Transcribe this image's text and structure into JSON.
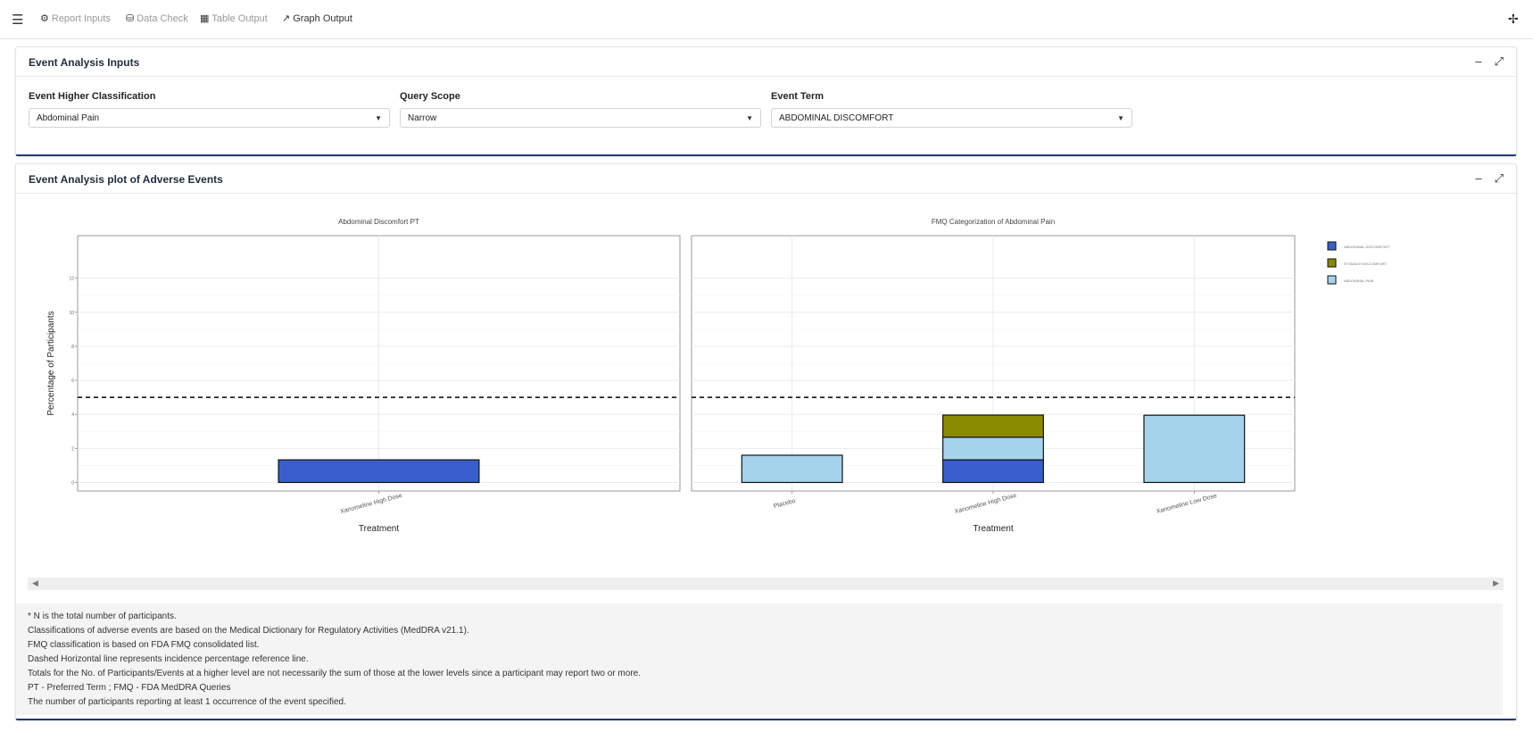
{
  "nav": {
    "items": [
      {
        "label": "Report Inputs",
        "icon": "gears-icon",
        "active": false
      },
      {
        "label": "Data Check",
        "icon": "database-icon",
        "active": false
      },
      {
        "label": "Table Output",
        "icon": "table-icon",
        "active": false
      },
      {
        "label": "Graph Output",
        "icon": "chart-line-icon",
        "active": true
      }
    ]
  },
  "inputs_card": {
    "title": "Event Analysis Inputs",
    "fields": [
      {
        "label": "Event Higher Classification",
        "value": "Abdominal Pain"
      },
      {
        "label": "Query Scope",
        "value": "Narrow"
      },
      {
        "label": "Event Term",
        "value": "ABDOMINAL DISCOMFORT"
      }
    ]
  },
  "plot_card": {
    "title": "Event Analysis plot of Adverse Events"
  },
  "chart_data": [
    {
      "type": "bar",
      "title": "Abdominal Discomfort PT",
      "xlabel": "Treatment",
      "ylabel": "Percentage of Participants",
      "categories": [
        "Xanomeline High Dose"
      ],
      "series": [
        {
          "name": "ABDOMINAL DISCOMFORT",
          "color": "#3a5fcd",
          "values": [
            1.33
          ]
        }
      ],
      "yticks": [
        0,
        2,
        4,
        6,
        8,
        10,
        12
      ],
      "ylim": [
        -0.5,
        14.5
      ],
      "reference_line": 5,
      "grid": true
    },
    {
      "type": "bar",
      "stacked": true,
      "title": "FMQ Categorization of Abdominal Pain",
      "xlabel": "Treatment",
      "categories": [
        "Placebo",
        "Xanomeline High Dose",
        "Xanomeline Low Dose"
      ],
      "series": [
        {
          "name": "ABDOMINAL DISCOMFORT",
          "color": "#3a5fcd",
          "values": [
            0,
            1.33,
            0
          ]
        },
        {
          "name": "ABDOMINAL PAIN",
          "color": "#a6d3ec",
          "values": [
            1.6,
            1.33,
            3.95
          ]
        },
        {
          "name": "STOMACH DISCOMFORT",
          "color": "#8b8b00",
          "values": [
            0,
            1.3,
            0
          ]
        }
      ],
      "ylim": [
        -0.5,
        14.5
      ],
      "reference_line": 5,
      "grid": true
    }
  ],
  "legend": {
    "items": [
      {
        "label": "ABDOMINAL DISCOMFORT",
        "color": "#3a5fcd"
      },
      {
        "label": "STOMACH DISCOMFORT",
        "color": "#8b8b00"
      },
      {
        "label": "ABDOMINAL PAIN",
        "color": "#a6d3ec"
      }
    ]
  },
  "notes": [
    "* N is the total number of participants.",
    "Classifications of adverse events are based on the Medical Dictionary for Regulatory Activities (MedDRA v21.1).",
    "FMQ classification is based on FDA FMQ consolidated list.",
    "Dashed Horizontal line represents incidence percentage reference line.",
    "Totals for the No. of Participants/Events at a higher level are not necessarily the sum of those at the lower levels since a participant may report two or more.",
    "PT - Preferred Term ; FMQ - FDA MedDRA Queries",
    "The number of participants reporting at least 1 occurrence of the event specified."
  ]
}
